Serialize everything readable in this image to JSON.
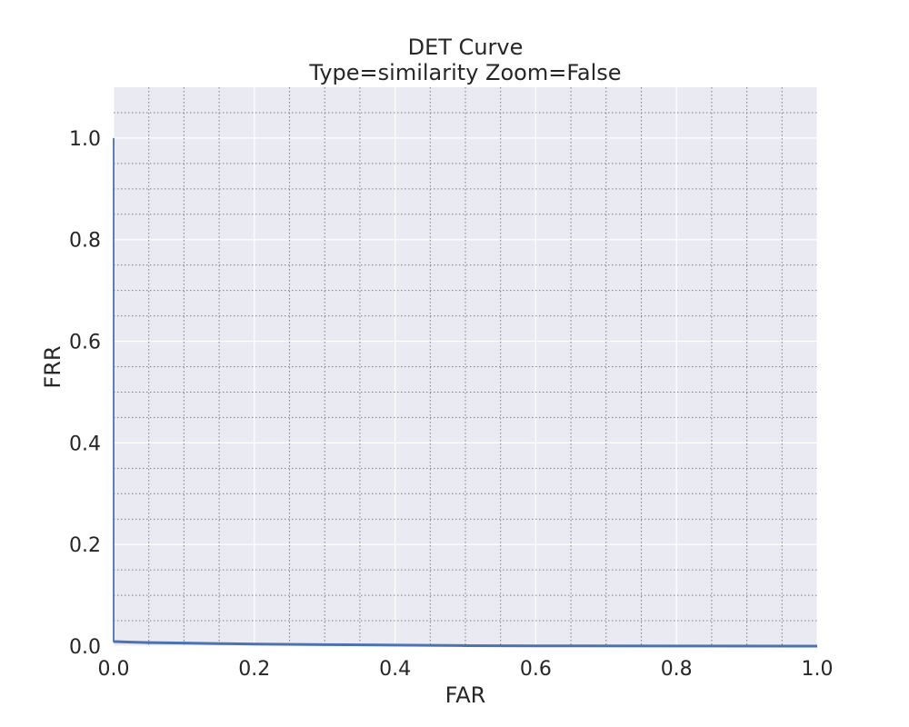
{
  "chart_data": {
    "type": "line",
    "title": "DET Curve",
    "subtitle": "Type=similarity Zoom=False",
    "xlabel": "FAR",
    "ylabel": "FRR",
    "xlim": [
      0.0,
      1.0
    ],
    "ylim": [
      0.0,
      1.1
    ],
    "xticks": [
      "0.0",
      "0.2",
      "0.4",
      "0.6",
      "0.8",
      "1.0"
    ],
    "yticks": [
      "0.0",
      "0.2",
      "0.4",
      "0.6",
      "0.8",
      "1.0"
    ],
    "grid": true,
    "legend": "none",
    "series": [
      {
        "color": "#4c72b0",
        "x": [
          0.0,
          0.0,
          0.0,
          0.02,
          0.05,
          0.1,
          0.15,
          0.2,
          0.3,
          0.4,
          0.5,
          0.6,
          0.8,
          1.0
        ],
        "y": [
          1.0,
          0.2,
          0.009,
          0.008,
          0.007,
          0.006,
          0.005,
          0.004,
          0.003,
          0.002,
          0.001,
          0.0005,
          0.0002,
          0.0
        ]
      }
    ]
  }
}
